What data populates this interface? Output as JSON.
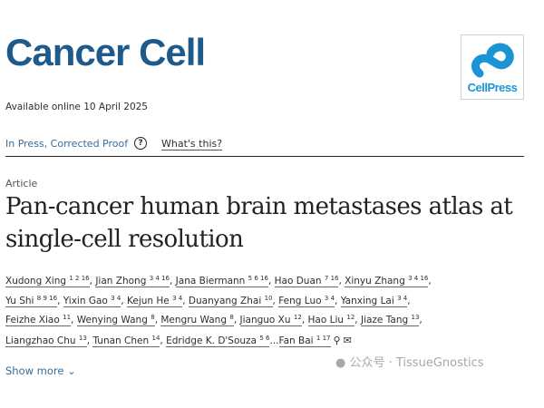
{
  "header": {
    "journal": "Cancer Cell",
    "logo_text": "CellPress",
    "available": "Available online 10 April 2025"
  },
  "status": {
    "label": "In Press, Corrected Proof",
    "help_icon": "question-circle-icon",
    "help_glyph": "?",
    "whats_this": "What's this?"
  },
  "article": {
    "type": "Article",
    "title": "Pan-cancer human brain metastases atlas at single-cell resolution"
  },
  "authors": [
    {
      "name": "Xudong Xing",
      "sup": "1 2 16"
    },
    {
      "name": "Jian Zhong",
      "sup": "3 4 16"
    },
    {
      "name": "Jana Biermann",
      "sup": "5 6 16"
    },
    {
      "name": "Hao Duan",
      "sup": "7 16"
    },
    {
      "name": "Xinyu Zhang",
      "sup": "3 4 16"
    },
    {
      "name": "Yu Shi",
      "sup": "8 9 16"
    },
    {
      "name": "Yixin Gao",
      "sup": "3 4"
    },
    {
      "name": "Kejun He",
      "sup": "3 4"
    },
    {
      "name": "Duanyang Zhai",
      "sup": "10"
    },
    {
      "name": "Feng Luo",
      "sup": "3 4"
    },
    {
      "name": "Yanxing Lai",
      "sup": "3 4"
    },
    {
      "name": "Feizhe Xiao",
      "sup": "11"
    },
    {
      "name": "Wenying Wang",
      "sup": "8"
    },
    {
      "name": "Mengru Wang",
      "sup": "8"
    },
    {
      "name": "Jianguo Xu",
      "sup": "12"
    },
    {
      "name": "Hao Liu",
      "sup": "12"
    },
    {
      "name": "Jiaze Tang",
      "sup": "13"
    },
    {
      "name": "Liangzhao Chu",
      "sup": "13"
    },
    {
      "name": "Tunan Chen",
      "sup": "14"
    },
    {
      "name": "Edridge K. D'Souza",
      "sup": "5 6"
    },
    {
      "name": "Fan Bai",
      "sup": "1 17"
    }
  ],
  "show_more": "Show more",
  "watermark": "公众号 · TissueGnostics",
  "colors": {
    "brand": "#1e5a8c",
    "link": "#3a6b96",
    "cellpress": "#1a94d4"
  }
}
